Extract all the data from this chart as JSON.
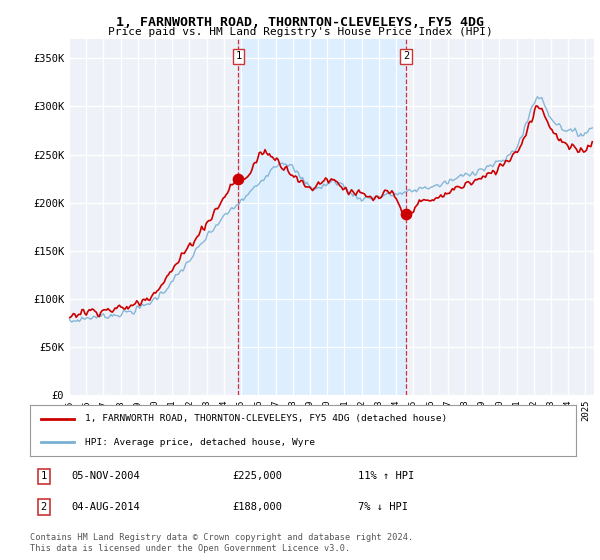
{
  "title": "1, FARNWORTH ROAD, THORNTON-CLEVELEYS, FY5 4DG",
  "subtitle": "Price paid vs. HM Land Registry's House Price Index (HPI)",
  "ylabel_ticks": [
    "£0",
    "£50K",
    "£100K",
    "£150K",
    "£200K",
    "£250K",
    "£300K",
    "£350K"
  ],
  "ytick_values": [
    0,
    50000,
    100000,
    150000,
    200000,
    250000,
    300000,
    350000
  ],
  "ylim": [
    0,
    370000
  ],
  "xlim_start": 1995.0,
  "xlim_end": 2025.5,
  "sale1_date": 2004.84,
  "sale1_label": "1",
  "sale1_price": 225000,
  "sale1_pct": "11% ↑ HPI",
  "sale1_date_str": "05-NOV-2004",
  "sale2_date": 2014.58,
  "sale2_label": "2",
  "sale2_price": 188000,
  "sale2_pct": "7% ↓ HPI",
  "sale2_date_str": "04-AUG-2014",
  "red_color": "#cc0000",
  "blue_color": "#7ab0d4",
  "shade_color": "#ddeeff",
  "dashed_color": "#cc0000",
  "legend_label1": "1, FARNWORTH ROAD, THORNTON-CLEVELEYS, FY5 4DG (detached house)",
  "legend_label2": "HPI: Average price, detached house, Wyre",
  "footnote": "Contains HM Land Registry data © Crown copyright and database right 2024.\nThis data is licensed under the Open Government Licence v3.0.",
  "background_color": "#ffffff",
  "plot_bg_color": "#eef2f8",
  "grid_color": "#ffffff"
}
